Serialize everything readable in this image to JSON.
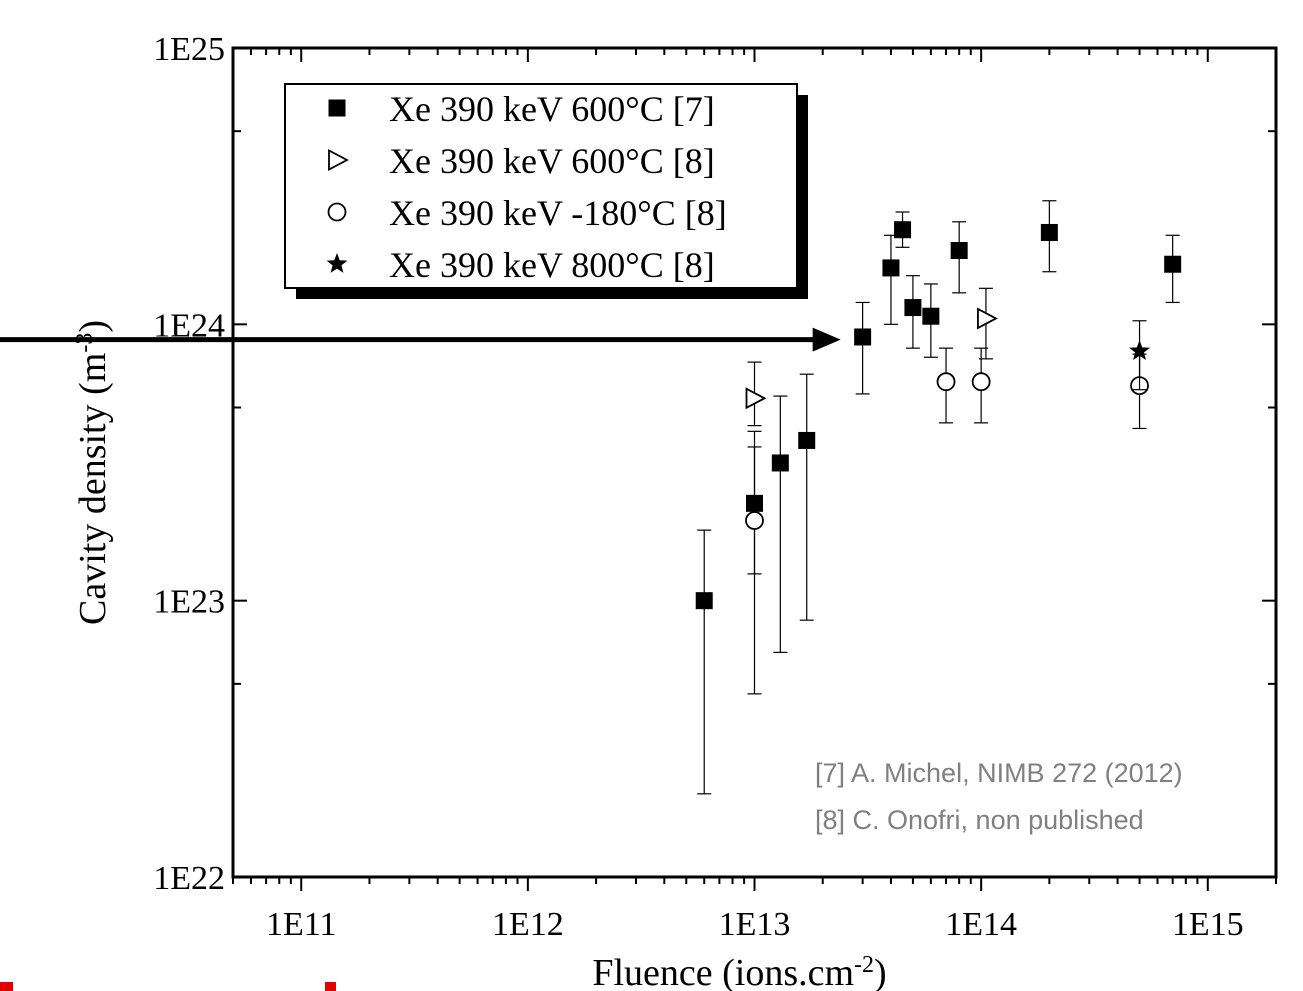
{
  "chart_data": {
    "type": "scatter",
    "xscale": "log",
    "yscale": "log",
    "xlim": [
      50000000000.0,
      2000000000000000.0
    ],
    "ylim": [
      1e+22,
      1e+25
    ],
    "x_ticks": [
      {
        "value": 100000000000.0,
        "label": "1E11"
      },
      {
        "value": 1000000000000.0,
        "label": "1E12"
      },
      {
        "value": 10000000000000.0,
        "label": "1E13"
      },
      {
        "value": 100000000000000.0,
        "label": "1E14"
      },
      {
        "value": 1000000000000000.0,
        "label": "1E15"
      }
    ],
    "y_ticks": [
      {
        "value": 1e+22,
        "label": "1E22"
      },
      {
        "value": 1e+23,
        "label": "1E23"
      },
      {
        "value": 1e+24,
        "label": "1E24"
      },
      {
        "value": 1e+25,
        "label": "1E25"
      }
    ],
    "xlabel": {
      "base": "Fluence (ions.cm",
      "sup": "-2",
      "tail": ")"
    },
    "ylabel": {
      "base": "Cavity density (m",
      "sup": "-3",
      "tail": ")"
    },
    "legend_position": "top-left",
    "series": [
      {
        "name": "Xe 390 keV 600°C [7]",
        "marker": "filled-square",
        "points": [
          {
            "x": 6000000000000.0,
            "y": 1e+23,
            "ylo": 2e+22,
            "yhi": 1.8e+23
          },
          {
            "x": 10000000000000.0,
            "y": 2.25e+23,
            "ylo": 1.25e+23,
            "yhi": 4.1e+23
          },
          {
            "x": 13000000000000.0,
            "y": 3.15e+23,
            "ylo": 6.5e+22,
            "yhi": 5.5e+23
          },
          {
            "x": 17000000000000.0,
            "y": 3.8e+23,
            "ylo": 8.5e+22,
            "yhi": 6.6e+23
          },
          {
            "x": 30000000000000.0,
            "y": 9e+23,
            "ylo": 5.6e+23,
            "yhi": 1.2e+24
          },
          {
            "x": 40000000000000.0,
            "y": 1.6e+24,
            "ylo": 1e+24,
            "yhi": 2.1e+24
          },
          {
            "x": 45000000000000.0,
            "y": 2.2e+24,
            "ylo": 1.9e+24,
            "yhi": 2.55e+24
          },
          {
            "x": 50000000000000.0,
            "y": 1.15e+24,
            "ylo": 8.2e+23,
            "yhi": 1.5e+24
          },
          {
            "x": 60000000000000.0,
            "y": 1.07e+24,
            "ylo": 7.6e+23,
            "yhi": 1.4e+24
          },
          {
            "x": 80000000000000.0,
            "y": 1.85e+24,
            "ylo": 1.3e+24,
            "yhi": 2.35e+24
          },
          {
            "x": 200000000000000.0,
            "y": 2.15e+24,
            "ylo": 1.55e+24,
            "yhi": 2.8e+24
          },
          {
            "x": 700000000000000.0,
            "y": 1.65e+24,
            "ylo": 1.2e+24,
            "yhi": 2.1e+24
          }
        ]
      },
      {
        "name": "Xe 390 keV 600°C [8]",
        "marker": "open-triangle-right",
        "points": [
          {
            "x": 10000000000000.0,
            "y": 5.4e+23,
            "ylo": 4.3e+23,
            "yhi": 7.3e+23
          },
          {
            "x": 105000000000000.0,
            "y": 1.05e+24,
            "ylo": 7.5e+23,
            "yhi": 1.35e+24
          }
        ]
      },
      {
        "name": "Xe 390 keV -180°C [8]",
        "marker": "open-circle",
        "points": [
          {
            "x": 10000000000000.0,
            "y": 1.95e+23,
            "ylo": 4.6e+22,
            "yhi": 3.6e+23
          },
          {
            "x": 70000000000000.0,
            "y": 6.2e+23,
            "ylo": 4.4e+23,
            "yhi": 8.2e+23
          },
          {
            "x": 100000000000000.0,
            "y": 6.2e+23,
            "ylo": 4.4e+23,
            "yhi": 8.2e+23
          },
          {
            "x": 500000000000000.0,
            "y": 6e+23,
            "ylo": 4.2e+23,
            "yhi": 7.8e+23
          }
        ]
      },
      {
        "name": "Xe 390 keV 800°C [8]",
        "marker": "filled-star",
        "points": [
          {
            "x": 500000000000000.0,
            "y": 8e+23,
            "ylo": 5.8e+23,
            "yhi": 1.03e+24
          }
        ]
      }
    ],
    "annotations": {
      "references": [
        "[7] A. Michel, NIMB 272 (2012)",
        "[8] C. Onofri, non published"
      ],
      "arrow": {
        "to_x": 24000000000000.0,
        "y": 8.8e+23,
        "direction": "right",
        "color": "#000000"
      }
    },
    "colors": {
      "axis": "#000000",
      "reference_text": "#808080",
      "red_fragment": "#e00000"
    }
  }
}
